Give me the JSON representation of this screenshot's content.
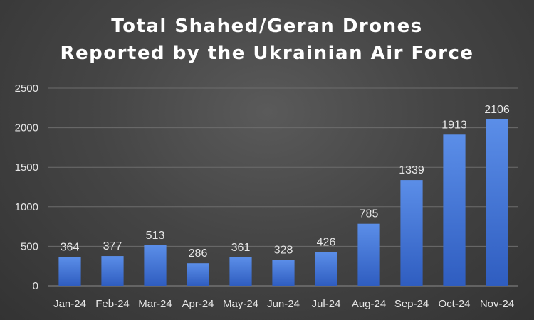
{
  "chart_data": {
    "type": "bar",
    "title_lines": [
      "Total Shahed/Geran Drones",
      "Reported by the Ukrainian Air Force"
    ],
    "categories": [
      "Jan-24",
      "Feb-24",
      "Mar-24",
      "Apr-24",
      "May-24",
      "Jun-24",
      "Jul-24",
      "Aug-24",
      "Sep-24",
      "Oct-24",
      "Nov-24"
    ],
    "values": [
      364,
      377,
      513,
      286,
      361,
      328,
      426,
      785,
      1339,
      1913,
      2106
    ],
    "ylim": [
      0,
      2500
    ],
    "yticks": [
      0,
      500,
      1000,
      1500,
      2000,
      2500
    ],
    "grid": true,
    "legend": "none",
    "colors": {
      "bar_top": "#5b8ee8",
      "bar_bottom": "#2f5dc0",
      "grid": "#6c6c6c",
      "text": "#e6e6e6"
    }
  }
}
